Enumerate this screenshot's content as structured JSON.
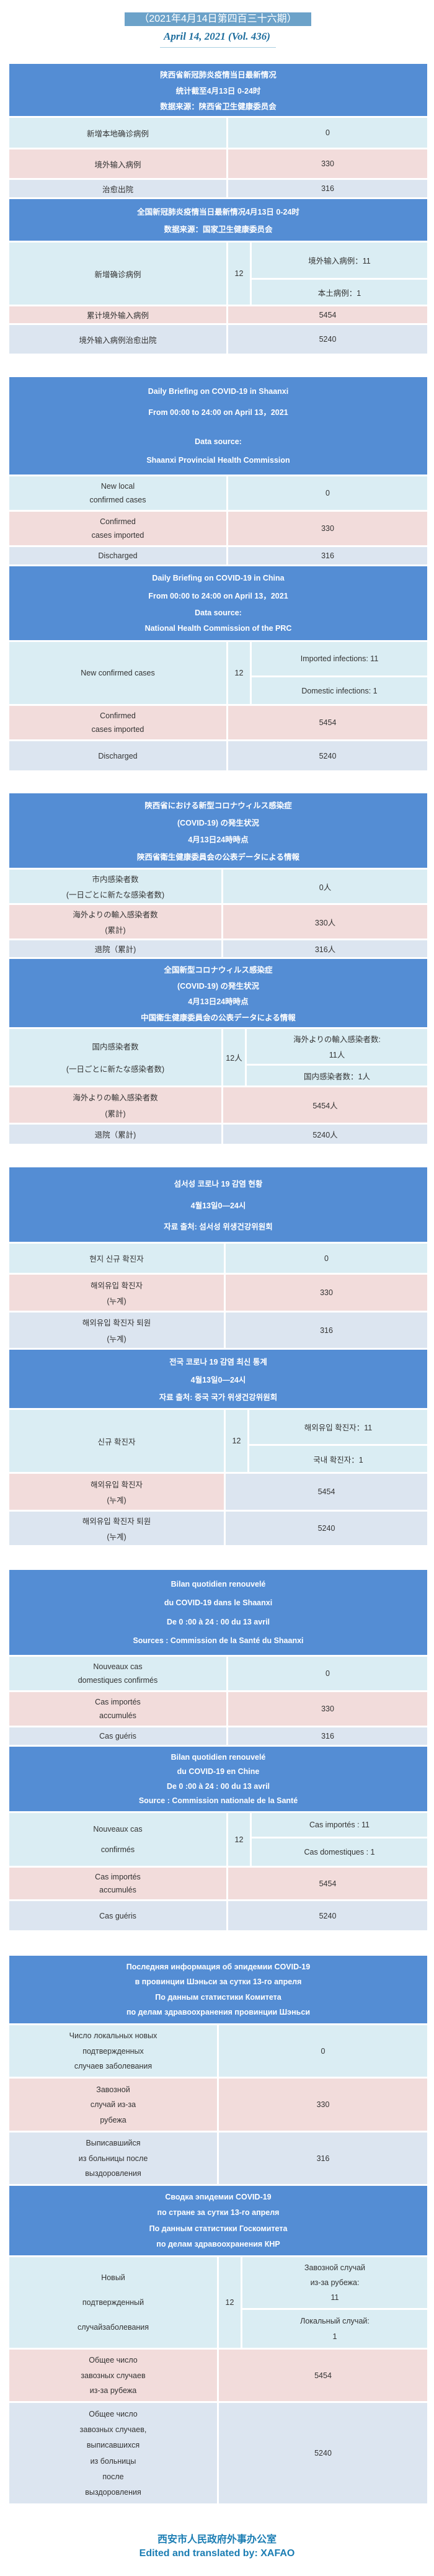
{
  "issue_badge": "（2021年4月14日第四百三十六期）",
  "issue_date_en": "April 14, 2021 (Vol. 436)",
  "colors": {
    "header": "#548dd4",
    "row_new": "#daedf3",
    "row_imported": "#f2dcdb",
    "row_discharged": "#dce5f0"
  },
  "sections": [
    {
      "lang": "zh",
      "province": {
        "header": [
          "陕西省新冠肺炎疫情当日最新情况",
          "统计截至4月13日 0-24时",
          "数据来源：陕西省卫生健康委员会"
        ],
        "rows": [
          {
            "label": [
              "新增本地确诊病例"
            ],
            "value": "0"
          },
          {
            "label": [
              "境外输入病例"
            ],
            "value": "330"
          },
          {
            "label": [
              "治愈出院"
            ],
            "value": "316"
          }
        ]
      },
      "national": {
        "header": [
          "全国新冠肺炎疫情当日最新情况4月13日 0-24时",
          "数据来源：国家卫生健康委员会"
        ],
        "new_cases": {
          "label": [
            "新增确诊病例"
          ],
          "total": "12",
          "imported": [
            "境外输入病例：11"
          ],
          "domestic": [
            "本土病例：1"
          ]
        },
        "rows": [
          {
            "label": [
              "累计境外输入病例"
            ],
            "value": "5454"
          },
          {
            "label": [
              "境外输入病例治愈出院"
            ],
            "value": "5240"
          }
        ]
      }
    },
    {
      "lang": "en",
      "province": {
        "header": [
          "Daily Briefing on COVID-19 in Shaanxi",
          "From 00:00 to 24:00 on April 13，2021",
          "",
          "Data source:",
          "Shaanxi Provincial Health Commission"
        ],
        "rows": [
          {
            "label": [
              "New local",
              "confirmed cases"
            ],
            "value": "0"
          },
          {
            "label": [
              "Confirmed",
              "cases imported"
            ],
            "value": "330"
          },
          {
            "label": [
              "Discharged"
            ],
            "value": "316"
          }
        ]
      },
      "national": {
        "header": [
          "Daily Briefing on COVID-19 in China",
          "From 00:00 to 24:00 on  April 13，2021",
          "Data source:",
          "National Health Commission of the PRC"
        ],
        "new_cases": {
          "label": [
            "New confirmed cases"
          ],
          "total": "12",
          "imported": [
            "Imported infections: 11"
          ],
          "domestic": [
            "Domestic infections: 1"
          ]
        },
        "rows": [
          {
            "label": [
              "Confirmed",
              "cases imported"
            ],
            "value": "5454"
          },
          {
            "label": [
              "Discharged"
            ],
            "value": "5240"
          }
        ]
      }
    },
    {
      "lang": "ja",
      "province": {
        "header": [
          "陝西省における新型コロナウィルス感染症",
          "(COVID-19) の発生状況",
          "4月13日24時時点",
          "陝西省衛生健康委員会の公表データによる情報"
        ],
        "rows": [
          {
            "label": [
              "市内感染者数",
              "(一日ごとに新たな感染者数)"
            ],
            "value": "0人"
          },
          {
            "label": [
              "海外よりの輸入感染者数",
              "(累計)"
            ],
            "value": "330人"
          },
          {
            "label": [
              "退院（累計)"
            ],
            "value": "316人"
          }
        ]
      },
      "national": {
        "header": [
          "全国新型コロナウィルス感染症",
          "(COVID-19) の発生状況",
          "4月13日24時時点",
          "中国衛生健康委員会の公表データによる情報"
        ],
        "new_cases": {
          "label": [
            "国内感染者数",
            "(一日ごとに新たな感染者数)"
          ],
          "total": "12人",
          "imported": [
            "海外よりの輸入感染者数:",
            "11人"
          ],
          "domestic": [
            "国内感染者数：1人"
          ]
        },
        "rows": [
          {
            "label": [
              "海外よりの輸入感染者数",
              "(累計)"
            ],
            "value": "5454人"
          },
          {
            "label": [
              "退院（累計)"
            ],
            "value": "5240人"
          }
        ]
      }
    },
    {
      "lang": "ko",
      "province": {
        "header": [
          "섬서성 코로나 19 감염 현황",
          "4월13일0—24시",
          "자료 출처: 섬서성 위생건강위원회"
        ],
        "rows": [
          {
            "label": [
              "현지 신규 확진자"
            ],
            "value": "0"
          },
          {
            "label": [
              "해외유입 확진자",
              "(누계)"
            ],
            "value": "330"
          },
          {
            "label": [
              "해외유입 확진자 퇴원",
              "(누계)"
            ],
            "value": "316"
          }
        ]
      },
      "national": {
        "header": [
          "전국 코로나 19 감염 최신 통계",
          "4월13일0—24시",
          "자료 출처: 중국 국가 위생건강위원회"
        ],
        "new_cases": {
          "label": [
            "신규 확진자"
          ],
          "total": "12",
          "imported": [
            "해외유입 확진자：11"
          ],
          "domestic": [
            "국내 확진자：1"
          ]
        },
        "rows": [
          {
            "label": [
              "해외유입 확진자",
              "(누계)"
            ],
            "value": "5454"
          },
          {
            "label": [
              "해외유입 확진자 퇴원",
              "(누계)"
            ],
            "value": "5240"
          }
        ]
      }
    },
    {
      "lang": "fr",
      "province": {
        "header": [
          "Bilan quotidien renouvelé",
          "du COVID-19 dans le Shaanxi",
          "De 0 :00 à 24 : 00 du 13 avril",
          "Sources : Commission de la Santé du Shaanxi"
        ],
        "rows": [
          {
            "label": [
              "Nouveaux cas",
              "domestiques confirmés"
            ],
            "value": "0"
          },
          {
            "label": [
              "Cas importés",
              "accumulés"
            ],
            "value": "330"
          },
          {
            "label": [
              "Cas guéris"
            ],
            "value": "316"
          }
        ]
      },
      "national": {
        "header": [
          "Bilan quotidien renouvelé",
          "du COVID-19 en Chine",
          "De 0 :00 à 24 : 00 du 13 avril",
          "Source : Commission nationale de la Santé"
        ],
        "new_cases": {
          "label": [
            "Nouveaux cas",
            "confirmés"
          ],
          "total": "12",
          "imported": [
            "Cas importés : 11"
          ],
          "domestic": [
            "Cas domestiques : 1"
          ]
        },
        "rows": [
          {
            "label": [
              "Cas importés",
              "accumulés"
            ],
            "value": "5454"
          },
          {
            "label": [
              "Cas guéris"
            ],
            "value": "5240"
          }
        ]
      }
    },
    {
      "lang": "ru",
      "province": {
        "header": [
          "Последняя информация об эпидемии COVID-19",
          "в провинции Шэньси за сутки 13-го  апреля",
          "По данным статистики Комитета",
          "по делам здравоохранения провинции Шэньси"
        ],
        "rows": [
          {
            "label": [
              "Число локальных новых",
              "подтвержденных",
              "случаев заболевания"
            ],
            "value": "0"
          },
          {
            "label": [
              "Завозной",
              "случай из-за",
              "рубежа"
            ],
            "value": "330"
          },
          {
            "label": [
              "Выписавшийся",
              "из больницы после",
              "выздоровления"
            ],
            "value": "316"
          }
        ]
      },
      "national": {
        "header": [
          "Сводка эпидемии COVID-19",
          "по стране за сутки 13-го  апреля",
          "По данным статистики Госкомитета",
          "по делам здравоохранения КНР"
        ],
        "new_cases": {
          "label": [
            "Новый",
            "подтвержденный",
            "случайзаболевания"
          ],
          "total": "12",
          "imported": [
            "Завозной случай",
            "из-за рубежа:",
            "11"
          ],
          "domestic": [
            "Локальный случай:",
            "1"
          ]
        },
        "rows": [
          {
            "label": [
              "Общее число",
              "завозных случаев",
              "из-за рубежа"
            ],
            "value": "5454"
          },
          {
            "label": [
              "Общее число",
              "завозных случаев,",
              "выписавшихся",
              "из больницы",
              "после",
              "выздоровления"
            ],
            "value": "5240"
          }
        ]
      }
    }
  ],
  "footer": {
    "org_zh": "西安市人民政府外事办公室",
    "credit_en": "Edited and translated by: XAFAO"
  }
}
